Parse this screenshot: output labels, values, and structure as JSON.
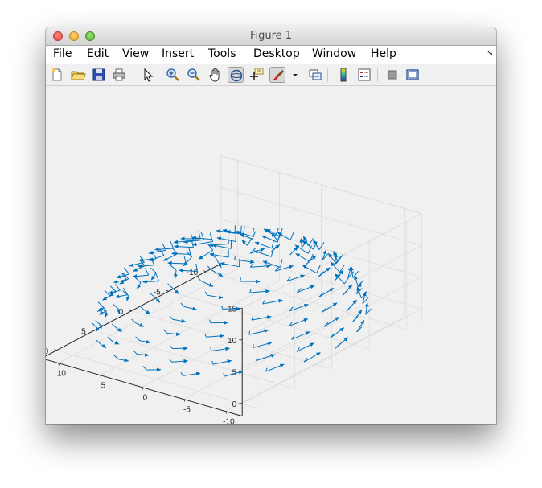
{
  "window": {
    "title": "Figure 1"
  },
  "menu": {
    "items": [
      "File",
      "Edit",
      "View",
      "Insert",
      "Tools",
      "Desktop",
      "Window",
      "Help"
    ]
  },
  "toolbar": {
    "buttons": [
      "new-figure-icon",
      "open-file-icon",
      "save-icon",
      "print-icon",
      "edit-plot-pointer-icon",
      "zoom-in-icon",
      "zoom-out-icon",
      "pan-hand-icon",
      "rotate-3d-icon",
      "data-cursor-icon",
      "brush-icon",
      "brush-dropdown-icon",
      "link-plot-icon",
      "colorbar-icon",
      "legend-icon",
      "hide-plot-tools-icon",
      "show-plot-tools-icon"
    ],
    "active_button": "rotate-3d-icon"
  },
  "colors": {
    "quiver": "#0072bd",
    "grid": "#dcdcdc",
    "axis": "#262626",
    "background": "#f0f0f0"
  },
  "chart_data": {
    "type": "quiver3",
    "description_series": "hemisphere surface normals/vectors",
    "x_ticks": [
      10,
      5,
      0,
      -5,
      -10
    ],
    "y_ticks": [
      10,
      5,
      0,
      -5,
      -10
    ],
    "z_ticks": [
      0,
      5,
      10,
      15
    ],
    "xlim": [
      -12,
      12
    ],
    "ylim": [
      -12,
      12
    ],
    "zlim": [
      -2,
      15
    ],
    "grid": true,
    "surface": {
      "shape": "hemisphere",
      "radius": 12,
      "z_min": 0,
      "z_max": 12
    }
  }
}
